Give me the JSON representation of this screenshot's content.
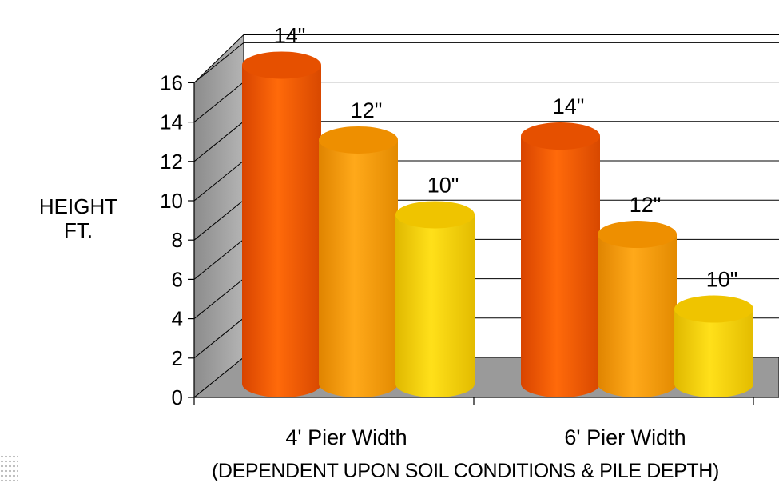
{
  "chart_data": {
    "type": "bar",
    "categories": [
      "4' Pier Width",
      "6' Pier Width"
    ],
    "series": [
      {
        "name": "14\"",
        "values": [
          16.2,
          12.6
        ],
        "color": "#f25a00"
      },
      {
        "name": "12\"",
        "values": [
          12.4,
          7.6
        ],
        "color": "#f79a00"
      },
      {
        "name": "10\"",
        "values": [
          8.6,
          3.8
        ],
        "color": "#f7d000"
      }
    ],
    "ylabel_lines": [
      "HEIGHT",
      "FT."
    ],
    "ylim": [
      0,
      16
    ],
    "yticks": [
      "0",
      "2",
      "4",
      "6",
      "8",
      "10",
      "12",
      "14",
      "16"
    ],
    "grid": true,
    "note": "(DEPENDENT UPON SOIL CONDITIONS & PILE DEPTH)"
  }
}
